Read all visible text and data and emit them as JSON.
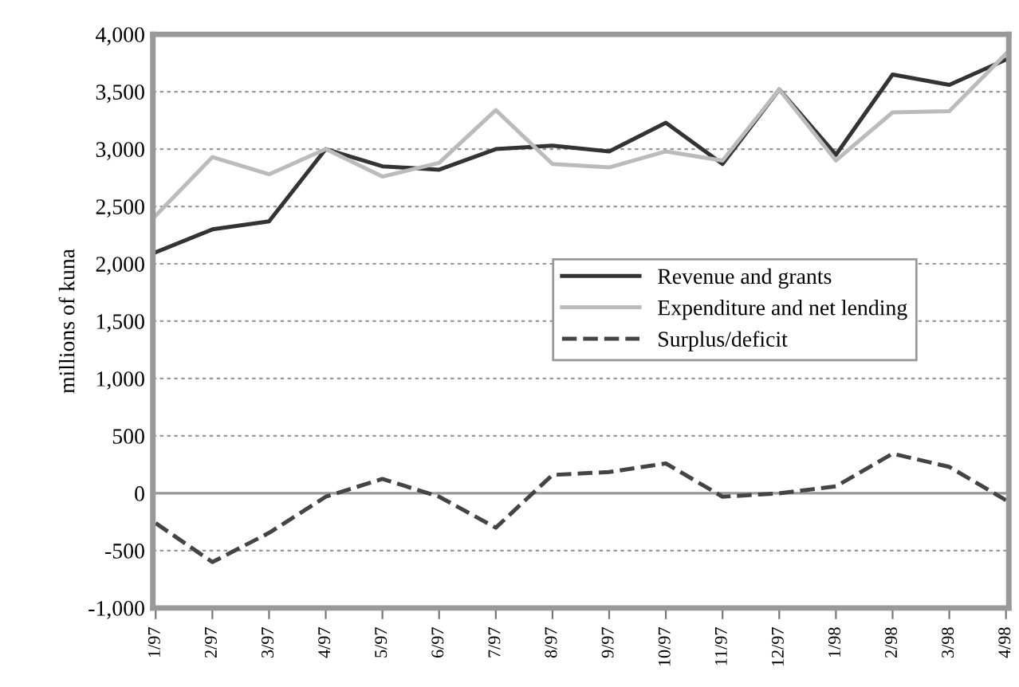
{
  "chart_data": {
    "type": "line",
    "ylabel": "millions of kuna",
    "categories": [
      "1/97",
      "2/97",
      "3/97",
      "4/97",
      "5/97",
      "6/97",
      "7/97",
      "8/97",
      "9/97",
      "10/97",
      "11/97",
      "12/97",
      "1/98",
      "2/98",
      "3/98",
      "4/98"
    ],
    "series": [
      {
        "name": "Revenue and grants",
        "color": "#333333",
        "line_style": "solid",
        "values": [
          2100,
          2300,
          2370,
          3000,
          2850,
          2820,
          3000,
          3030,
          2980,
          3230,
          2870,
          3520,
          2950,
          3650,
          3560,
          3780
        ]
      },
      {
        "name": "Expenditure and net lending",
        "color": "#bbbbbb",
        "line_style": "solid",
        "values": [
          2420,
          2930,
          2780,
          3000,
          2760,
          2880,
          3340,
          2870,
          2840,
          2980,
          2900,
          3520,
          2900,
          3320,
          3330,
          3830
        ]
      },
      {
        "name": "Surplus/deficit",
        "color": "#444444",
        "line_style": "dashed",
        "values": [
          -260,
          -600,
          -345,
          -30,
          125,
          -30,
          -300,
          160,
          185,
          260,
          -30,
          0,
          60,
          345,
          230,
          -60
        ]
      }
    ],
    "ylim": [
      -1000,
      4000
    ],
    "yticks": [
      {
        "value": -1000,
        "label": "-1,000"
      },
      {
        "value": -500,
        "label": "-500"
      },
      0,
      {
        "value": 500,
        "label": "500"
      },
      {
        "value": 1000,
        "label": "1,000"
      },
      {
        "value": 1500,
        "label": "1,500"
      },
      {
        "value": 2000,
        "label": "2,000"
      },
      {
        "value": 2500,
        "label": "2,500"
      },
      {
        "value": 3000,
        "label": "3,000"
      },
      {
        "value": 3500,
        "label": "3,500"
      },
      {
        "value": 4000,
        "label": "4,000"
      }
    ],
    "ref_lines": [
      {
        "axis": "y",
        "value": 0,
        "color": "#999999"
      }
    ],
    "grid": "y",
    "legend": "right",
    "marker": "none"
  }
}
